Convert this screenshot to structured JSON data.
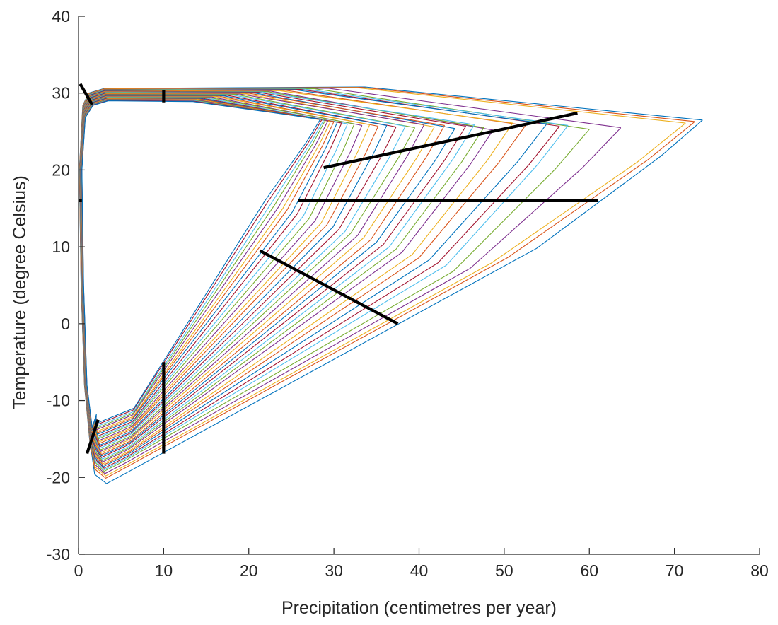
{
  "chart_data": {
    "type": "line",
    "title": "",
    "xlabel": "Precipitation (centimetres per year)",
    "ylabel": "Temperature (degree Celsius)",
    "xlim": [
      0,
      80
    ],
    "ylim": [
      -30,
      40
    ],
    "xticks": [
      0,
      10,
      20,
      30,
      40,
      50,
      60,
      70,
      80
    ],
    "yticks": [
      -30,
      -20,
      -10,
      0,
      10,
      20,
      30,
      40
    ],
    "grid": false,
    "legend": "none",
    "family": {
      "description_of_curves": "closed loops, each passing along the top edge near 30 °C, down the left edge near 0 precipitation, and out along a diagonal edge toward a rightmost point near 26 °C",
      "curves": [
        {
          "right_x": 73.3,
          "right_y": 26.5,
          "bottom_x": 3.3,
          "bottom_y": -20.8,
          "mid_x": 53.8,
          "mid_y": 9.8,
          "color": "#0072BD"
        },
        {
          "right_x": 72.4,
          "right_y": 26.3,
          "bottom_x": 3.2,
          "bottom_y": -20.1,
          "mid_x": 50.4,
          "mid_y": 8.6,
          "color": "#D95319"
        },
        {
          "right_x": 71.3,
          "right_y": 26.1,
          "bottom_x": 3.2,
          "bottom_y": -19.8,
          "mid_x": 48.5,
          "mid_y": 7.9,
          "color": "#EDB120"
        },
        {
          "right_x": 63.7,
          "right_y": 25.5,
          "bottom_x": 3.1,
          "bottom_y": -19.5,
          "mid_x": 46.0,
          "mid_y": 7.2,
          "color": "#7E2F8E"
        },
        {
          "right_x": 60.0,
          "right_y": 25.3,
          "bottom_x": 3.0,
          "bottom_y": -19.2,
          "mid_x": 44.0,
          "mid_y": 6.8,
          "color": "#77AC30"
        },
        {
          "right_x": 57.5,
          "right_y": 25.8,
          "bottom_x": 3.0,
          "bottom_y": -19.0,
          "mid_x": 43.2,
          "mid_y": 7.6,
          "color": "#4DBEEE"
        },
        {
          "right_x": 56.5,
          "right_y": 25.7,
          "bottom_x": 3.0,
          "bottom_y": -18.8,
          "mid_x": 42.2,
          "mid_y": 7.9,
          "color": "#A2142F"
        },
        {
          "right_x": 55.0,
          "right_y": 26.0,
          "bottom_x": 2.9,
          "bottom_y": -18.6,
          "mid_x": 41.2,
          "mid_y": 8.3,
          "color": "#0072BD"
        },
        {
          "right_x": 52.5,
          "right_y": 25.8,
          "bottom_x": 2.9,
          "bottom_y": -18.4,
          "mid_x": 40.0,
          "mid_y": 8.6,
          "color": "#D95319"
        },
        {
          "right_x": 51.0,
          "right_y": 26.1,
          "bottom_x": 2.9,
          "bottom_y": -18.2,
          "mid_x": 39.2,
          "mid_y": 9.0,
          "color": "#EDB120"
        },
        {
          "right_x": 48.7,
          "right_y": 25.2,
          "bottom_x": 2.8,
          "bottom_y": -18.0,
          "mid_x": 38.0,
          "mid_y": 9.3,
          "color": "#7E2F8E"
        },
        {
          "right_x": 47.6,
          "right_y": 25.5,
          "bottom_x": 2.8,
          "bottom_y": -17.8,
          "mid_x": 37.3,
          "mid_y": 9.7,
          "color": "#77AC30"
        },
        {
          "right_x": 46.5,
          "right_y": 25.9,
          "bottom_x": 2.8,
          "bottom_y": -17.6,
          "mid_x": 36.5,
          "mid_y": 10.0,
          "color": "#4DBEEE"
        },
        {
          "right_x": 45.5,
          "right_y": 25.7,
          "bottom_x": 2.7,
          "bottom_y": -17.4,
          "mid_x": 35.8,
          "mid_y": 10.3,
          "color": "#A2142F"
        },
        {
          "right_x": 44.2,
          "right_y": 25.4,
          "bottom_x": 2.7,
          "bottom_y": -17.2,
          "mid_x": 35.0,
          "mid_y": 10.6,
          "color": "#0072BD"
        },
        {
          "right_x": 43.0,
          "right_y": 25.8,
          "bottom_x": 2.7,
          "bottom_y": -17.0,
          "mid_x": 34.3,
          "mid_y": 10.9,
          "color": "#D95319"
        },
        {
          "right_x": 41.8,
          "right_y": 25.6,
          "bottom_x": 2.6,
          "bottom_y": -16.8,
          "mid_x": 33.5,
          "mid_y": 11.2,
          "color": "#EDB120"
        },
        {
          "right_x": 40.6,
          "right_y": 25.9,
          "bottom_x": 2.6,
          "bottom_y": -16.6,
          "mid_x": 32.8,
          "mid_y": 11.5,
          "color": "#7E2F8E"
        },
        {
          "right_x": 39.5,
          "right_y": 25.5,
          "bottom_x": 2.6,
          "bottom_y": -16.4,
          "mid_x": 32.0,
          "mid_y": 11.8,
          "color": "#77AC30"
        },
        {
          "right_x": 38.4,
          "right_y": 25.7,
          "bottom_x": 2.5,
          "bottom_y": -16.2,
          "mid_x": 31.3,
          "mid_y": 12.0,
          "color": "#4DBEEE"
        },
        {
          "right_x": 37.3,
          "right_y": 25.6,
          "bottom_x": 2.5,
          "bottom_y": -16.0,
          "mid_x": 30.6,
          "mid_y": 12.3,
          "color": "#A2142F"
        },
        {
          "right_x": 36.2,
          "right_y": 25.8,
          "bottom_x": 2.5,
          "bottom_y": -15.8,
          "mid_x": 29.9,
          "mid_y": 12.6,
          "color": "#0072BD"
        },
        {
          "right_x": 35.2,
          "right_y": 25.7,
          "bottom_x": 2.4,
          "bottom_y": -15.6,
          "mid_x": 29.2,
          "mid_y": 12.9,
          "color": "#D95319"
        },
        {
          "right_x": 34.2,
          "right_y": 25.9,
          "bottom_x": 2.4,
          "bottom_y": -15.4,
          "mid_x": 28.5,
          "mid_y": 13.1,
          "color": "#EDB120"
        },
        {
          "right_x": 33.3,
          "right_y": 25.8,
          "bottom_x": 2.4,
          "bottom_y": -15.2,
          "mid_x": 27.8,
          "mid_y": 13.4,
          "color": "#7E2F8E"
        },
        {
          "right_x": 32.4,
          "right_y": 26.0,
          "bottom_x": 2.3,
          "bottom_y": -15.0,
          "mid_x": 27.1,
          "mid_y": 13.7,
          "color": "#77AC30"
        },
        {
          "right_x": 31.6,
          "right_y": 26.0,
          "bottom_x": 2.3,
          "bottom_y": -14.8,
          "mid_x": 26.4,
          "mid_y": 14.0,
          "color": "#4DBEEE"
        },
        {
          "right_x": 30.9,
          "right_y": 26.1,
          "bottom_x": 2.3,
          "bottom_y": -14.6,
          "mid_x": 25.7,
          "mid_y": 14.3,
          "color": "#A2142F"
        },
        {
          "right_x": 30.4,
          "right_y": 26.2,
          "bottom_x": 2.2,
          "bottom_y": -14.4,
          "mid_x": 25.1,
          "mid_y": 14.5,
          "color": "#0072BD"
        },
        {
          "right_x": 30.0,
          "right_y": 26.3,
          "bottom_x": 2.2,
          "bottom_y": -14.2,
          "mid_x": 24.5,
          "mid_y": 14.8,
          "color": "#D95319"
        },
        {
          "right_x": 29.6,
          "right_y": 26.3,
          "bottom_x": 2.2,
          "bottom_y": -14.0,
          "mid_x": 24.0,
          "mid_y": 15.0,
          "color": "#EDB120"
        },
        {
          "right_x": 29.3,
          "right_y": 26.4,
          "bottom_x": 2.1,
          "bottom_y": -13.8,
          "mid_x": 23.5,
          "mid_y": 15.2,
          "color": "#7E2F8E"
        },
        {
          "right_x": 29.0,
          "right_y": 26.5,
          "bottom_x": 2.1,
          "bottom_y": -13.6,
          "mid_x": 23.0,
          "mid_y": 15.4,
          "color": "#77AC30"
        },
        {
          "right_x": 28.8,
          "right_y": 26.5,
          "bottom_x": 2.1,
          "bottom_y": -13.4,
          "mid_x": 22.6,
          "mid_y": 15.6,
          "color": "#4DBEEE"
        },
        {
          "right_x": 28.6,
          "right_y": 26.6,
          "bottom_x": 2.0,
          "bottom_y": -13.2,
          "mid_x": 22.2,
          "mid_y": 15.8,
          "color": "#A2142F"
        },
        {
          "right_x": 28.4,
          "right_y": 26.6,
          "bottom_x": 2.0,
          "bottom_y": -13.0,
          "mid_x": 21.9,
          "mid_y": 16.0,
          "color": "#0072BD"
        }
      ]
    },
    "markers": [
      {
        "name": "transect-top-left",
        "x": [
          0.2,
          1.6
        ],
        "y": [
          31.2,
          28.5
        ],
        "color": "#000000"
      },
      {
        "name": "tick-top-10",
        "x": [
          10,
          10
        ],
        "y": [
          30.4,
          28.8
        ],
        "color": "#000000"
      },
      {
        "name": "tick-left-16",
        "x": [
          0,
          0.4
        ],
        "y": [
          16.0,
          16.0
        ],
        "color": "#000000"
      },
      {
        "name": "transect-upper-right",
        "x": [
          28.8,
          58.6
        ],
        "y": [
          20.3,
          27.4
        ],
        "color": "#000000"
      },
      {
        "name": "transect-horizontal-16",
        "x": [
          25.8,
          61.0
        ],
        "y": [
          16.0,
          16.0
        ],
        "color": "#000000"
      },
      {
        "name": "transect-diagonal",
        "x": [
          21.3,
          37.5
        ],
        "y": [
          9.5,
          0.0
        ],
        "color": "#000000"
      },
      {
        "name": "transect-vertical-10",
        "x": [
          10,
          10
        ],
        "y": [
          -5.0,
          -16.9
        ],
        "color": "#000000"
      },
      {
        "name": "transect-bottom-left",
        "x": [
          1.0,
          2.3
        ],
        "y": [
          -16.9,
          -12.5
        ],
        "color": "#000000"
      }
    ]
  }
}
